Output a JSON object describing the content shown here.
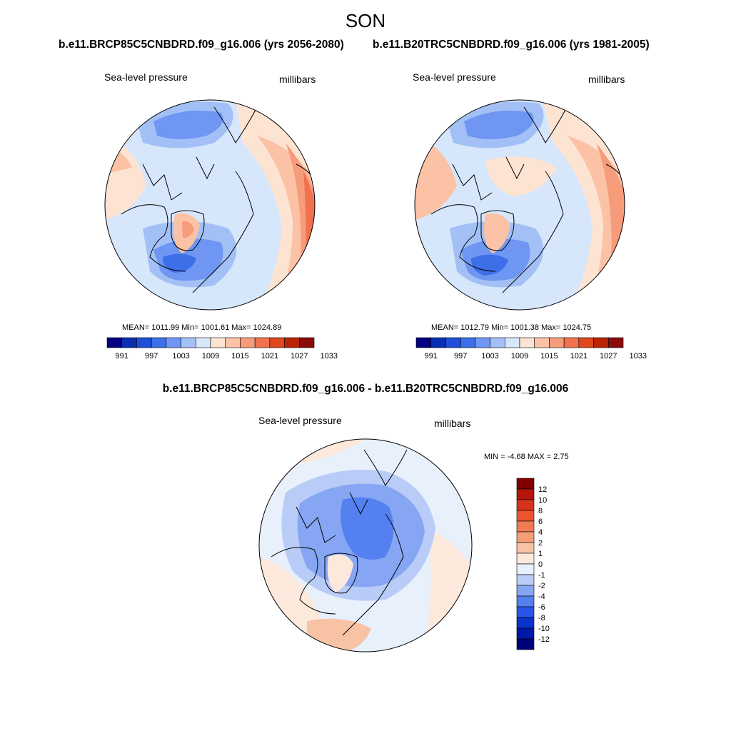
{
  "season": "SON",
  "colors": {
    "levels": [
      "#000080",
      "#0a2fb0",
      "#1f4fd8",
      "#3d6fe8",
      "#6f96f2",
      "#a3c0f6",
      "#d6e6fb",
      "#fde4d2",
      "#fbc2a6",
      "#f69c7b",
      "#f1714f",
      "#e0471f",
      "#bb2307",
      "#8a0a0a"
    ],
    "diff": [
      "#00007a",
      "#0018a8",
      "#0a33cc",
      "#2a55e6",
      "#5580f0",
      "#86a6f3",
      "#b8ccf7",
      "#e8f0fc",
      "#fde9dc",
      "#f8c3a4",
      "#f59c79",
      "#f07a52",
      "#ea5530",
      "#d8331a",
      "#b4160a",
      "#800000"
    ]
  },
  "panel_left": {
    "case": "b.e11.BRCP85C5CNBDRD.f09_g16.006 (yrs 2056-2080)",
    "variable": "Sea-level pressure",
    "units": "millibars",
    "stats": {
      "mean": "1011.99",
      "min": "1001.61",
      "max": "1024.89"
    },
    "stats_text": "MEAN= 1011.99  Min= 1001.61  Max= 1024.89",
    "ticks": [
      "991",
      "997",
      "1003",
      "1009",
      "1015",
      "1021",
      "1027",
      "1033"
    ]
  },
  "panel_right": {
    "case": "b.e11.B20TRC5CNBDRD.f09_g16.006 (yrs 1981-2005)",
    "variable": "Sea-level pressure",
    "units": "millibars",
    "stats": {
      "mean": "1012.79",
      "min": "1001.38",
      "max": "1024.75"
    },
    "stats_text": "MEAN= 1012.79  Min= 1001.38  Max= 1024.75",
    "ticks": [
      "991",
      "997",
      "1003",
      "1009",
      "1015",
      "1021",
      "1027",
      "1033"
    ]
  },
  "panel_diff": {
    "title": "b.e11.BRCP85C5CNBDRD.f09_g16.006 - b.e11.B20TRC5CNBDRD.f09_g16.006",
    "variable": "Sea-level pressure",
    "units": "millibars",
    "min": "-4.68",
    "max": "2.75",
    "minmax_text": "MIN =  -4.68 MAX =   2.75",
    "ticks": [
      "12",
      "10",
      "8",
      "6",
      "4",
      "2",
      "1",
      "0",
      "-1",
      "-2",
      "-4",
      "-6",
      "-8",
      "-10",
      "-12"
    ]
  }
}
